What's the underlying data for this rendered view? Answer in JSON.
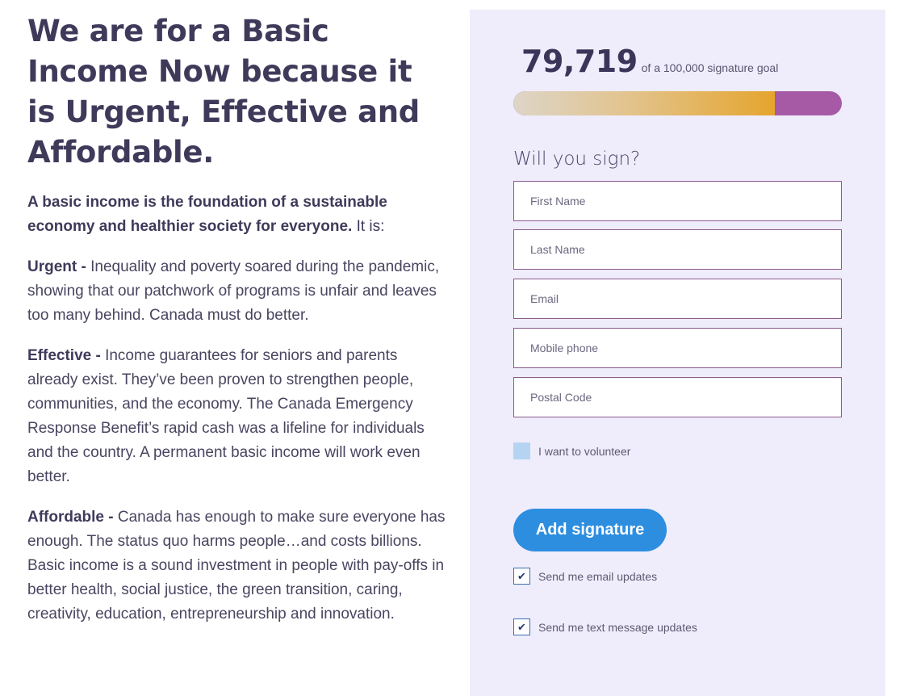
{
  "left": {
    "headline": "We are for a Basic Income Now because it is Urgent, Effective and Affordable.",
    "intro_bold": "A basic income is the foundation of a sustainable economy and healthier society for everyone.",
    "intro_rest": " It is:",
    "points": [
      {
        "lead": "Urgent -",
        "text": " Inequality and poverty soared during the pandemic, showing that our patchwork of programs is unfair and leaves too many behind. Canada must do better."
      },
      {
        "lead": "Effective -",
        "text": " Income guarantees for seniors and parents already exist. They’ve been proven to strengthen people, communities, and the economy. The Canada Emergency Response Benefit’s rapid cash was a lifeline for individuals and the country. A permanent basic income will work even better."
      },
      {
        "lead": "Affordable -",
        "text": " Canada has enough to make sure everyone has enough. The status quo harms people…and costs billions. Basic income is a sound investment in people with pay-offs in better health, social justice, the green transition, caring, creativity, education, entrepreneurship and innovation."
      }
    ]
  },
  "petition": {
    "count": "79,719",
    "goal_text": "of a 100,000 signature goal",
    "progress_fraction": 0.797,
    "colors": {
      "progress_start": "#ddd5c8",
      "progress_end": "#e5a52d",
      "progress_remaining": "#a65aa6",
      "panel": "#efecfb",
      "button": "#2d8ee0"
    },
    "form_title": "Will you sign?",
    "fields": {
      "first_name": "First Name",
      "last_name": "Last Name",
      "email": "Email",
      "mobile": "Mobile phone",
      "postal": "Postal Code"
    },
    "volunteer_label": "I want to volunteer",
    "submit_label": "Add signature",
    "email_updates_label": "Send me email updates",
    "sms_updates_label": "Send me text message updates",
    "check_glyph": "✔"
  }
}
